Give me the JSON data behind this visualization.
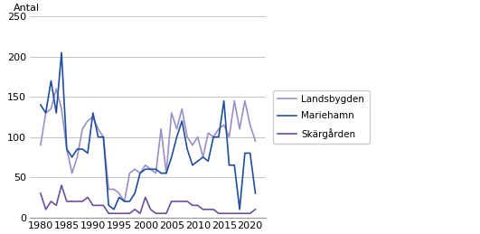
{
  "years": [
    1980,
    1981,
    1982,
    1983,
    1984,
    1985,
    1986,
    1987,
    1988,
    1989,
    1990,
    1991,
    1992,
    1993,
    1994,
    1995,
    1996,
    1997,
    1998,
    1999,
    2000,
    2001,
    2002,
    2003,
    2004,
    2005,
    2006,
    2007,
    2008,
    2009,
    2010,
    2011,
    2012,
    2013,
    2014,
    2015,
    2016,
    2017,
    2018,
    2019,
    2020,
    2021
  ],
  "landsbygden": [
    90,
    130,
    135,
    160,
    135,
    85,
    55,
    75,
    110,
    120,
    125,
    110,
    100,
    35,
    35,
    30,
    20,
    55,
    60,
    55,
    65,
    60,
    55,
    110,
    55,
    130,
    110,
    135,
    100,
    90,
    100,
    75,
    105,
    100,
    110,
    115,
    100,
    145,
    110,
    145,
    115,
    95
  ],
  "mariehamn": [
    140,
    130,
    170,
    130,
    205,
    85,
    75,
    85,
    85,
    80,
    130,
    100,
    100,
    15,
    10,
    25,
    20,
    20,
    30,
    55,
    60,
    60,
    60,
    55,
    55,
    75,
    100,
    120,
    85,
    65,
    70,
    75,
    70,
    100,
    100,
    145,
    65,
    65,
    10,
    80,
    80,
    30
  ],
  "skargarden": [
    30,
    10,
    20,
    15,
    40,
    20,
    20,
    20,
    20,
    25,
    15,
    15,
    15,
    5,
    5,
    5,
    5,
    5,
    10,
    5,
    25,
    10,
    5,
    5,
    5,
    20,
    20,
    20,
    20,
    15,
    15,
    10,
    10,
    10,
    5,
    5,
    5,
    5,
    5,
    5,
    5,
    10
  ],
  "landsbygden_color": "#9b8fc7",
  "mariehamn_color": "#1f4e9e",
  "skargarden_color": "#6a4fa0",
  "ylabel": "Antal",
  "ylim": [
    0,
    250
  ],
  "yticks": [
    0,
    50,
    100,
    150,
    200,
    250
  ],
  "xticks": [
    1980,
    1985,
    1990,
    1995,
    2000,
    2005,
    2010,
    2015,
    2020
  ],
  "legend_labels": [
    "Landsbygden",
    "Mariehamn",
    "Skärgården"
  ],
  "bg_color": "#ffffff",
  "grid_color": "#bbbbbb",
  "linewidth": 1.2
}
